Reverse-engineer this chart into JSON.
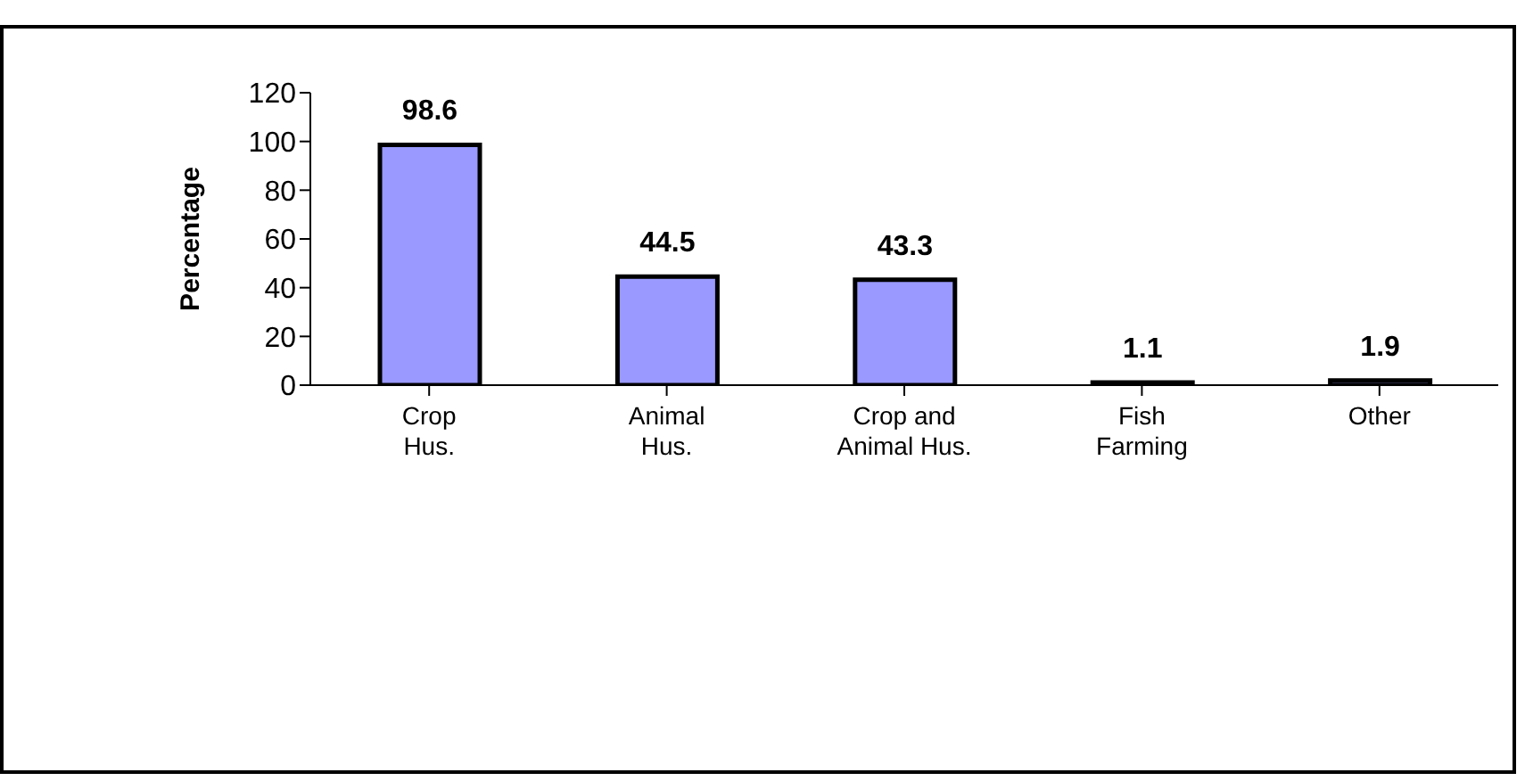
{
  "chart_data": {
    "type": "bar",
    "ylabel": "Percentage",
    "categories": [
      "Crop\nHus.",
      "Animal\nHus.",
      "Crop and\nAnimal Hus.",
      "Fish\nFarming",
      "Other"
    ],
    "values": [
      98.6,
      44.5,
      43.3,
      1.1,
      1.9
    ],
    "color": "#9999ff",
    "ylim": [
      0,
      120
    ],
    "yticks": [
      0,
      20,
      40,
      60,
      80,
      100,
      120
    ],
    "grid": false,
    "legend": false,
    "data_labels": true
  }
}
